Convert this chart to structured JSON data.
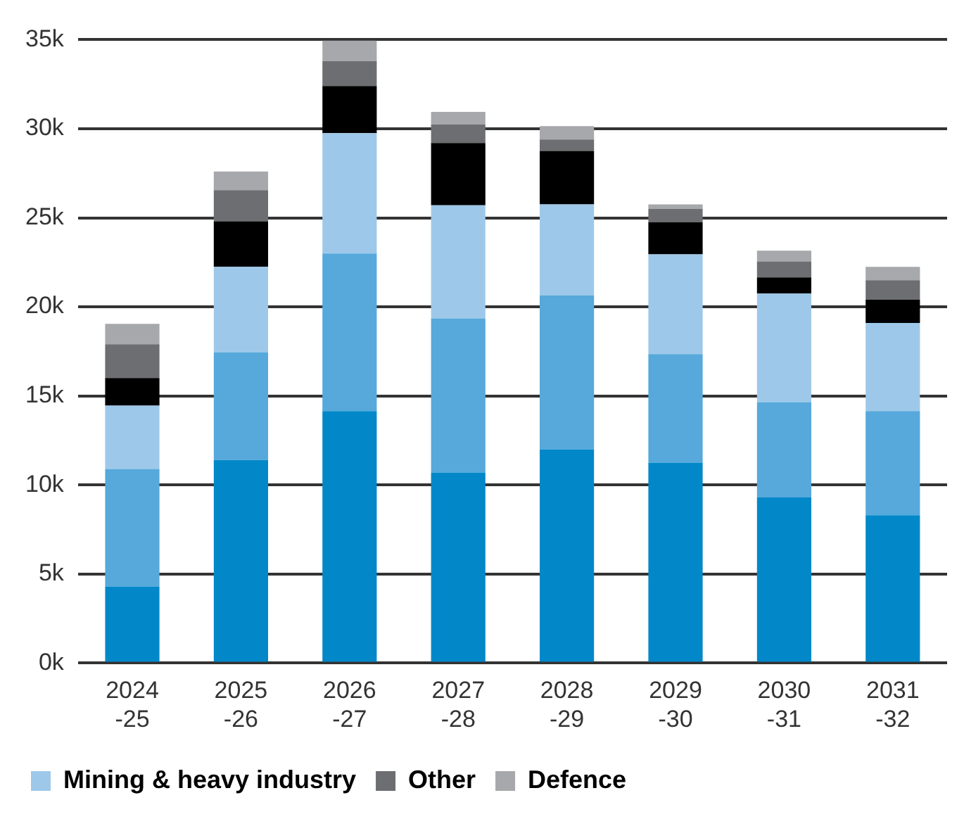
{
  "chart_data": {
    "type": "bar",
    "stacked": true,
    "categories": [
      "2024\n-25",
      "2025\n-26",
      "2026\n-27",
      "2027\n-28",
      "2028\n-29",
      "2029\n-30",
      "2030\n-31",
      "2031\n-32"
    ],
    "series": [
      {
        "color": "#0288c9",
        "values": [
          4300,
          11400,
          14150,
          10700,
          12000,
          11250,
          9300,
          8300
        ]
      },
      {
        "color": "#56a9da",
        "values": [
          6600,
          6050,
          8850,
          8650,
          8650,
          6100,
          5350,
          5850
        ]
      },
      {
        "name": "Mining & heavy industry",
        "color": "#9ec8e9",
        "values": [
          3550,
          4800,
          6750,
          6350,
          5100,
          5600,
          6100,
          4950
        ]
      },
      {
        "color": "#000000",
        "values": [
          1550,
          2550,
          2650,
          3500,
          3000,
          1800,
          900,
          1300
        ]
      },
      {
        "name": "Other",
        "color": "#6d6e71",
        "values": [
          1900,
          1750,
          1400,
          1050,
          650,
          750,
          900,
          1100
        ]
      },
      {
        "name": "Defence",
        "color": "#a7a8ab",
        "values": [
          1150,
          1050,
          1150,
          700,
          750,
          250,
          600,
          750
        ]
      }
    ],
    "ylim": [
      0,
      35000
    ],
    "yticks": [
      {
        "value": 0,
        "label": "0k"
      },
      {
        "value": 5000,
        "label": "5k"
      },
      {
        "value": 10000,
        "label": "10k"
      },
      {
        "value": 15000,
        "label": "15k"
      },
      {
        "value": 20000,
        "label": "20k"
      },
      {
        "value": 25000,
        "label": "25k"
      },
      {
        "value": 30000,
        "label": "30k"
      },
      {
        "value": 35000,
        "label": "35k"
      }
    ],
    "grid": "y",
    "legend": "bottom left"
  }
}
